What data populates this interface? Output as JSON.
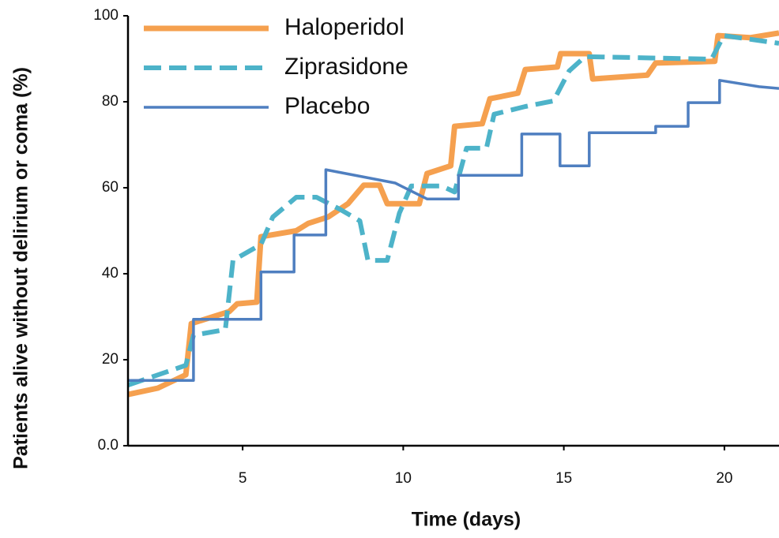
{
  "chart_data": {
    "type": "line",
    "xlabel": "Time (days)",
    "ylabel": "Patients alive without delirium or coma (%)",
    "xlim": [
      1.43,
      21.7
    ],
    "ylim": [
      0,
      100
    ],
    "xticks": [
      5,
      10,
      15,
      20
    ],
    "yticks": [
      {
        "value": 0,
        "label": "0.0"
      },
      20,
      40,
      60,
      80,
      100
    ],
    "grid": false,
    "legend": "upper left",
    "series": [
      {
        "name": "Haloperidol",
        "color": "#f5a04f",
        "style": "solid",
        "width": 7,
        "x": [
          1.43,
          2.36,
          3.23,
          3.4,
          4.58,
          4.83,
          5.44,
          5.57,
          6.67,
          7.04,
          7.66,
          8.28,
          8.77,
          9.26,
          9.5,
          10.5,
          10.74,
          11.48,
          11.6,
          12.46,
          12.7,
          13.57,
          13.8,
          14.8,
          14.9,
          15.79,
          15.9,
          17.6,
          17.86,
          19.7,
          19.8,
          20.8,
          21.7
        ],
        "values": [
          11.9,
          13.4,
          16.5,
          28.4,
          31.2,
          33,
          33.4,
          48.6,
          50,
          51.7,
          53.2,
          56.3,
          60.6,
          60.6,
          56.3,
          56.3,
          63.3,
          65.1,
          74.3,
          74.9,
          80.7,
          82,
          87.5,
          88.1,
          91.2,
          91.2,
          85.3,
          86.2,
          89,
          89.4,
          95.4,
          94.9,
          96
        ]
      },
      {
        "name": "Ziprasidone",
        "color": "#4db3c9",
        "style": "dashed",
        "width": 6,
        "x": [
          1.43,
          3.23,
          3.47,
          4.46,
          4.7,
          5.57,
          5.94,
          6.67,
          7.3,
          8.03,
          8.65,
          8.9,
          9.5,
          9.88,
          10.25,
          11.2,
          11.6,
          11.97,
          12.59,
          12.83,
          13.8,
          14.68,
          15.17,
          15.66,
          19.6,
          19.98,
          21.7
        ],
        "values": [
          14.1,
          18.7,
          25.7,
          27,
          43.1,
          46.8,
          53.2,
          57.8,
          57.8,
          55,
          52.3,
          43.1,
          43.1,
          54.1,
          60.4,
          60.4,
          59,
          69.2,
          69.2,
          77.1,
          78.9,
          80.2,
          87.2,
          90.5,
          89.9,
          95.4,
          93.6
        ]
      },
      {
        "name": "Placebo",
        "color": "#4f7fc0",
        "style": "solid",
        "width": 3.5,
        "x": [
          1.43,
          3.47,
          3.47,
          5.57,
          5.57,
          6.6,
          6.6,
          7.59,
          7.59,
          9.75,
          10.74,
          11.72,
          11.72,
          13.69,
          13.69,
          14.88,
          14.88,
          15.79,
          15.79,
          17.86,
          17.86,
          18.87,
          18.87,
          19.85,
          19.85,
          21.08,
          21.7
        ],
        "values": [
          15.2,
          15.2,
          29.4,
          29.4,
          40.4,
          40.4,
          49,
          49,
          64.2,
          61.1,
          57.4,
          57.4,
          62.9,
          62.9,
          72.5,
          72.5,
          65.1,
          65.1,
          72.8,
          72.8,
          74.3,
          74.3,
          79.8,
          79.8,
          85,
          83.5,
          83.1
        ]
      }
    ]
  }
}
